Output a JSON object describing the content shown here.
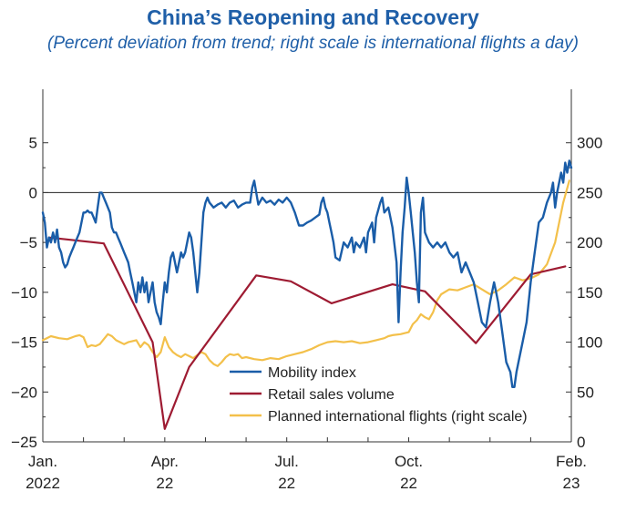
{
  "chart_data": {
    "type": "line",
    "title": "China’s Reopening and Recovery",
    "subtitle": "(Percent deviation from trend; right scale is international flights a day)",
    "x_range": [
      0,
      13
    ],
    "x_ticks": [
      {
        "x": 0,
        "line1": "Jan.",
        "line2": "2022"
      },
      {
        "x": 3,
        "line1": "Apr.",
        "line2": "22"
      },
      {
        "x": 6,
        "line1": "Jul.",
        "line2": "22"
      },
      {
        "x": 9,
        "line1": "Oct.",
        "line2": "22"
      },
      {
        "x": 13,
        "line1": "Feb.",
        "line2": "23"
      }
    ],
    "y_left": {
      "range": [
        -25,
        10
      ],
      "ticks": [
        -25,
        -20,
        -15,
        -10,
        -5,
        0,
        5
      ],
      "labels": [
        "−25",
        "−20",
        "−15",
        "−10",
        "−5",
        "0",
        "5"
      ]
    },
    "y_right": {
      "range": [
        0,
        350
      ],
      "ticks": [
        0,
        50,
        100,
        150,
        200,
        250,
        300
      ],
      "labels": [
        "0",
        "50",
        "100",
        "150",
        "200",
        "250",
        "300"
      ]
    },
    "zero_line": 0,
    "series": [
      {
        "name": "Mobility index",
        "axis": "left",
        "color": "#1a5da8",
        "points": [
          [
            0.0,
            -2
          ],
          [
            0.05,
            -3
          ],
          [
            0.1,
            -5.5
          ],
          [
            0.15,
            -4.5
          ],
          [
            0.2,
            -5
          ],
          [
            0.25,
            -4
          ],
          [
            0.3,
            -5
          ],
          [
            0.35,
            -3.7
          ],
          [
            0.4,
            -5.5
          ],
          [
            0.45,
            -6
          ],
          [
            0.5,
            -7
          ],
          [
            0.55,
            -7.5
          ],
          [
            0.6,
            -7.2
          ],
          [
            0.65,
            -6.5
          ],
          [
            0.7,
            -6
          ],
          [
            0.75,
            -5.5
          ],
          [
            0.8,
            -5
          ],
          [
            0.85,
            -4.5
          ],
          [
            0.9,
            -4
          ],
          [
            0.95,
            -3
          ],
          [
            1.0,
            -2
          ],
          [
            1.05,
            -2
          ],
          [
            1.1,
            -1.8
          ],
          [
            1.15,
            -2
          ],
          [
            1.2,
            -2
          ],
          [
            1.25,
            -2.5
          ],
          [
            1.3,
            -3
          ],
          [
            1.35,
            -1.5
          ],
          [
            1.4,
            0
          ],
          [
            1.45,
            0
          ],
          [
            1.5,
            -0.5
          ],
          [
            1.55,
            -1
          ],
          [
            1.6,
            -1.5
          ],
          [
            1.65,
            -2
          ],
          [
            1.7,
            -3.5
          ],
          [
            1.75,
            -4
          ],
          [
            1.8,
            -4
          ],
          [
            1.85,
            -4.5
          ],
          [
            1.9,
            -5
          ],
          [
            1.95,
            -5.5
          ],
          [
            2.0,
            -6
          ],
          [
            2.05,
            -6.5
          ],
          [
            2.1,
            -7
          ],
          [
            2.15,
            -8
          ],
          [
            2.2,
            -9
          ],
          [
            2.25,
            -10
          ],
          [
            2.3,
            -11
          ],
          [
            2.35,
            -9
          ],
          [
            2.4,
            -10
          ],
          [
            2.45,
            -8.5
          ],
          [
            2.5,
            -10
          ],
          [
            2.55,
            -9
          ],
          [
            2.6,
            -11
          ],
          [
            2.65,
            -10
          ],
          [
            2.7,
            -9
          ],
          [
            2.75,
            -11
          ],
          [
            2.8,
            -12
          ],
          [
            2.85,
            -12.5
          ],
          [
            2.9,
            -13.2
          ],
          [
            2.95,
            -11
          ],
          [
            3.0,
            -9
          ],
          [
            3.05,
            -10
          ],
          [
            3.1,
            -8
          ],
          [
            3.15,
            -6.5
          ],
          [
            3.2,
            -6
          ],
          [
            3.25,
            -7
          ],
          [
            3.3,
            -8
          ],
          [
            3.35,
            -7
          ],
          [
            3.4,
            -6
          ],
          [
            3.45,
            -6.5
          ],
          [
            3.5,
            -6
          ],
          [
            3.55,
            -5
          ],
          [
            3.6,
            -4
          ],
          [
            3.65,
            -4.5
          ],
          [
            3.7,
            -6
          ],
          [
            3.75,
            -8
          ],
          [
            3.8,
            -10
          ],
          [
            3.85,
            -8
          ],
          [
            3.9,
            -5
          ],
          [
            3.95,
            -2
          ],
          [
            4.0,
            -1
          ],
          [
            4.05,
            -0.5
          ],
          [
            4.1,
            -1
          ],
          [
            4.2,
            -1.5
          ],
          [
            4.3,
            -1.2
          ],
          [
            4.4,
            -1
          ],
          [
            4.5,
            -1.5
          ],
          [
            4.6,
            -1
          ],
          [
            4.7,
            -0.8
          ],
          [
            4.8,
            -1.5
          ],
          [
            4.9,
            -1.2
          ],
          [
            5.0,
            -1
          ],
          [
            5.1,
            -1
          ],
          [
            5.15,
            0.5
          ],
          [
            5.2,
            1.2
          ],
          [
            5.25,
            0
          ],
          [
            5.3,
            -1.2
          ],
          [
            5.4,
            -0.5
          ],
          [
            5.5,
            -1
          ],
          [
            5.6,
            -0.8
          ],
          [
            5.7,
            -1.2
          ],
          [
            5.8,
            -0.7
          ],
          [
            5.9,
            -1
          ],
          [
            6.0,
            -0.5
          ],
          [
            6.1,
            -1
          ],
          [
            6.2,
            -2
          ],
          [
            6.3,
            -3.3
          ],
          [
            6.4,
            -3.3
          ],
          [
            6.5,
            -3
          ],
          [
            6.6,
            -2.8
          ],
          [
            6.7,
            -2.5
          ],
          [
            6.8,
            -2.2
          ],
          [
            6.85,
            -1
          ],
          [
            6.9,
            -0.5
          ],
          [
            6.95,
            -1.5
          ],
          [
            7.0,
            -2
          ],
          [
            7.05,
            -3
          ],
          [
            7.1,
            -4
          ],
          [
            7.15,
            -5
          ],
          [
            7.2,
            -6.5
          ],
          [
            7.3,
            -6.8
          ],
          [
            7.4,
            -5
          ],
          [
            7.5,
            -5.5
          ],
          [
            7.6,
            -4.5
          ],
          [
            7.65,
            -6
          ],
          [
            7.7,
            -5
          ],
          [
            7.8,
            -5.5
          ],
          [
            7.9,
            -4.5
          ],
          [
            7.95,
            -6
          ],
          [
            8.0,
            -4
          ],
          [
            8.1,
            -3
          ],
          [
            8.15,
            -5
          ],
          [
            8.2,
            -2.5
          ],
          [
            8.3,
            -1
          ],
          [
            8.35,
            -0.5
          ],
          [
            8.4,
            -2
          ],
          [
            8.5,
            -1.5
          ],
          [
            8.6,
            -3.5
          ],
          [
            8.7,
            -7
          ],
          [
            8.75,
            -13
          ],
          [
            8.8,
            -8
          ],
          [
            8.85,
            -4
          ],
          [
            8.9,
            -1.5
          ],
          [
            8.95,
            1.5
          ],
          [
            9.0,
            0
          ],
          [
            9.05,
            -2
          ],
          [
            9.1,
            -4
          ],
          [
            9.15,
            -6
          ],
          [
            9.2,
            -9
          ],
          [
            9.25,
            -11
          ],
          [
            9.3,
            -2
          ],
          [
            9.35,
            -0.5
          ],
          [
            9.4,
            -4
          ],
          [
            9.5,
            -5
          ],
          [
            9.6,
            -5.5
          ],
          [
            9.7,
            -5
          ],
          [
            9.8,
            -5.5
          ],
          [
            9.9,
            -5
          ],
          [
            10.0,
            -6
          ],
          [
            10.1,
            -6.5
          ],
          [
            10.2,
            -6
          ],
          [
            10.3,
            -8
          ],
          [
            10.4,
            -7
          ],
          [
            10.5,
            -8
          ],
          [
            10.6,
            -9
          ],
          [
            10.7,
            -11
          ],
          [
            10.8,
            -13
          ],
          [
            10.9,
            -13.5
          ],
          [
            11.0,
            -11
          ],
          [
            11.1,
            -9
          ],
          [
            11.15,
            -10
          ],
          [
            11.2,
            -11
          ],
          [
            11.3,
            -14
          ],
          [
            11.4,
            -17
          ],
          [
            11.5,
            -18
          ],
          [
            11.55,
            -19.5
          ],
          [
            11.6,
            -19.5
          ],
          [
            11.65,
            -18
          ],
          [
            11.7,
            -17
          ],
          [
            11.8,
            -15
          ],
          [
            11.9,
            -13
          ],
          [
            12.0,
            -9
          ],
          [
            12.1,
            -6
          ],
          [
            12.2,
            -3
          ],
          [
            12.3,
            -2.5
          ],
          [
            12.4,
            -1
          ],
          [
            12.5,
            0
          ],
          [
            12.55,
            1
          ],
          [
            12.6,
            -1.5
          ],
          [
            12.65,
            0
          ],
          [
            12.7,
            1
          ],
          [
            12.75,
            2
          ],
          [
            12.8,
            1
          ],
          [
            12.85,
            3
          ],
          [
            12.9,
            2
          ],
          [
            12.95,
            3.2
          ],
          [
            13.0,
            2.5
          ]
        ]
      },
      {
        "name": "Retail sales volume",
        "axis": "left",
        "color": "#9e1b32",
        "points": [
          [
            0.15,
            -4.5
          ],
          [
            1.5,
            -5.1
          ],
          [
            2.7,
            -15
          ],
          [
            3.0,
            -23.7
          ],
          [
            3.6,
            -17.5
          ],
          [
            5.25,
            -8.3
          ],
          [
            6.1,
            -8.9
          ],
          [
            7.1,
            -11.1
          ],
          [
            8.6,
            -9.2
          ],
          [
            9.4,
            -9.9
          ],
          [
            10.65,
            -15.1
          ],
          [
            12.0,
            -8.2
          ],
          [
            12.85,
            -7.4
          ]
        ]
      },
      {
        "name": "Planned international flights (right scale)",
        "axis": "right",
        "color": "#f3c04a",
        "points": [
          [
            0.0,
            102
          ],
          [
            0.2,
            106
          ],
          [
            0.4,
            104
          ],
          [
            0.6,
            103
          ],
          [
            0.8,
            106
          ],
          [
            0.9,
            107
          ],
          [
            1.0,
            105
          ],
          [
            1.1,
            95
          ],
          [
            1.2,
            97
          ],
          [
            1.3,
            96
          ],
          [
            1.4,
            98
          ],
          [
            1.5,
            103
          ],
          [
            1.6,
            108
          ],
          [
            1.7,
            106
          ],
          [
            1.8,
            102
          ],
          [
            1.9,
            100
          ],
          [
            2.0,
            98
          ],
          [
            2.1,
            100
          ],
          [
            2.3,
            102
          ],
          [
            2.4,
            95
          ],
          [
            2.5,
            100
          ],
          [
            2.6,
            97
          ],
          [
            2.7,
            90
          ],
          [
            2.8,
            85
          ],
          [
            2.9,
            90
          ],
          [
            3.0,
            105
          ],
          [
            3.1,
            95
          ],
          [
            3.2,
            90
          ],
          [
            3.3,
            87
          ],
          [
            3.4,
            85
          ],
          [
            3.5,
            88
          ],
          [
            3.6,
            86
          ],
          [
            3.7,
            84
          ],
          [
            3.8,
            87
          ],
          [
            3.9,
            90
          ],
          [
            4.0,
            88
          ],
          [
            4.1,
            82
          ],
          [
            4.2,
            78
          ],
          [
            4.3,
            76
          ],
          [
            4.4,
            80
          ],
          [
            4.5,
            85
          ],
          [
            4.6,
            88
          ],
          [
            4.7,
            87
          ],
          [
            4.8,
            88
          ],
          [
            4.9,
            84
          ],
          [
            5.0,
            85
          ],
          [
            5.2,
            83
          ],
          [
            5.4,
            82
          ],
          [
            5.6,
            84
          ],
          [
            5.8,
            83
          ],
          [
            6.0,
            86
          ],
          [
            6.2,
            88
          ],
          [
            6.4,
            90
          ],
          [
            6.6,
            93
          ],
          [
            6.8,
            97
          ],
          [
            7.0,
            100
          ],
          [
            7.2,
            101
          ],
          [
            7.4,
            100
          ],
          [
            7.6,
            101
          ],
          [
            7.8,
            99
          ],
          [
            8.0,
            100
          ],
          [
            8.2,
            102
          ],
          [
            8.4,
            104
          ],
          [
            8.5,
            106
          ],
          [
            8.6,
            107
          ],
          [
            8.8,
            108
          ],
          [
            9.0,
            110
          ],
          [
            9.1,
            118
          ],
          [
            9.2,
            122
          ],
          [
            9.3,
            128
          ],
          [
            9.4,
            125
          ],
          [
            9.5,
            123
          ],
          [
            9.6,
            130
          ],
          [
            9.7,
            142
          ],
          [
            9.8,
            148
          ],
          [
            10.0,
            153
          ],
          [
            10.2,
            152
          ],
          [
            10.4,
            155
          ],
          [
            10.6,
            158
          ],
          [
            10.8,
            153
          ],
          [
            11.0,
            148
          ],
          [
            11.2,
            152
          ],
          [
            11.4,
            158
          ],
          [
            11.6,
            165
          ],
          [
            11.8,
            162
          ],
          [
            12.0,
            164
          ],
          [
            12.2,
            168
          ],
          [
            12.4,
            178
          ],
          [
            12.6,
            200
          ],
          [
            12.8,
            240
          ],
          [
            12.95,
            262
          ]
        ]
      }
    ],
    "legend": {
      "placement": "bottom-center"
    }
  }
}
